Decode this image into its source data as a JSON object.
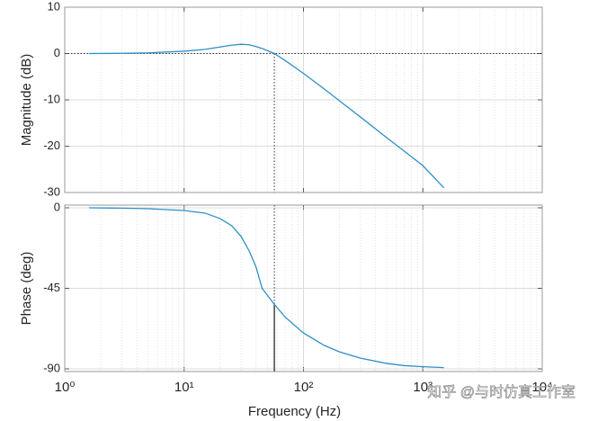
{
  "chart_data": [
    {
      "type": "line",
      "ylabel": "Magnitude (dB)",
      "log_x": true,
      "grid": true,
      "minor_grid": true,
      "color": "#2f8fc6",
      "x": [
        1.6,
        3,
        5,
        10,
        15,
        20,
        25,
        30,
        35,
        40,
        45,
        50,
        57,
        70,
        100,
        150,
        200,
        300,
        500,
        700,
        1000,
        1500
      ],
      "values": [
        0,
        0.05,
        0.15,
        0.5,
        0.9,
        1.4,
        1.8,
        2.0,
        1.9,
        1.5,
        1.1,
        0.6,
        0,
        -1.5,
        -4.3,
        -7.7,
        -10.2,
        -13.7,
        -18.2,
        -21.1,
        -24.2,
        -29
      ],
      "xlim": [
        1,
        10000
      ],
      "xticks": [
        1,
        10,
        100,
        1000,
        10000
      ],
      "ylim": [
        -30,
        10
      ],
      "yticks": [
        -30,
        -20,
        -10,
        0,
        10
      ],
      "crossover": {
        "x": 57,
        "y": 0
      }
    },
    {
      "type": "line",
      "ylabel": "Phase (deg)",
      "xlabel": "Frequency (Hz)",
      "log_x": true,
      "grid": true,
      "minor_grid": true,
      "color": "#2f8fc6",
      "x": [
        1.6,
        3,
        5,
        10,
        15,
        20,
        25,
        30,
        35,
        40,
        45,
        50,
        57,
        70,
        100,
        150,
        200,
        300,
        500,
        700,
        1000,
        1500
      ],
      "values": [
        0,
        -0.2,
        -0.5,
        -1.5,
        -3,
        -6,
        -10,
        -16,
        -24,
        -33,
        -45,
        -49,
        -54,
        -61,
        -70,
        -77,
        -80.5,
        -84,
        -87,
        -88.2,
        -88.8,
        -89.3
      ],
      "xlim": [
        1,
        10000
      ],
      "xticks": [
        {
          "value": 1,
          "label": "10⁰"
        },
        {
          "value": 10,
          "label": "10¹"
        },
        {
          "value": 100,
          "label": "10²"
        },
        {
          "value": 1000,
          "label": "10³"
        },
        {
          "value": 10000,
          "label": "10⁴"
        }
      ],
      "ylim": [
        -91.5,
        1.5
      ],
      "yticks": [
        -90,
        -45,
        0
      ],
      "crossover": {
        "x": 57,
        "y": -54
      },
      "annotation": "知乎 @与时仿真工作室"
    }
  ]
}
